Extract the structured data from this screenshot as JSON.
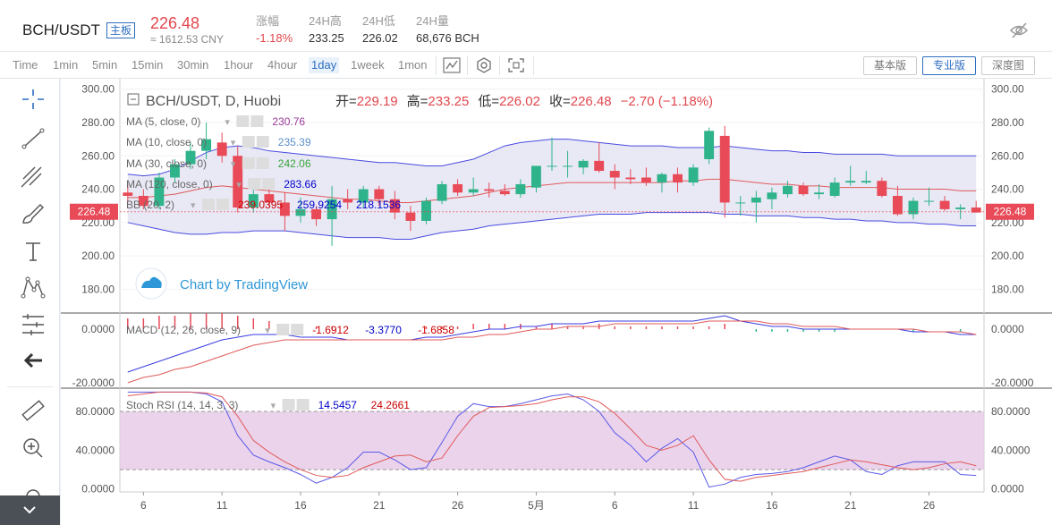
{
  "header": {
    "pair": "BCH/USDT",
    "badge": "主板",
    "price": "226.48",
    "cny": "≈ 1612.53 CNY",
    "stats": [
      {
        "label": "涨幅",
        "value": "-1.18%",
        "color": "red"
      },
      {
        "label": "24H高",
        "value": "233.25",
        "color": "normal"
      },
      {
        "label": "24H低",
        "value": "226.02",
        "color": "normal"
      },
      {
        "label": "24H量",
        "value": "68,676 BCH",
        "color": "normal"
      }
    ]
  },
  "toolbar": {
    "timeframes": [
      "Time",
      "1min",
      "5min",
      "15min",
      "30min",
      "1hour",
      "4hour",
      "1day",
      "1week",
      "1mon"
    ],
    "active_timeframe": "1day",
    "views": [
      "基本版",
      "专业版",
      "深度图"
    ],
    "active_view": "专业版"
  },
  "chart_data": {
    "type": "candlestick",
    "symbol": "BCH/USDT, D, Huobi",
    "ohlc_header": {
      "open_label": "开=",
      "open": "229.19",
      "high_label": "高=",
      "high": "233.25",
      "low_label": "低=",
      "low": "226.02",
      "close_label": "收=",
      "close": "226.48",
      "change": "−2.70 (−1.18%)"
    },
    "last_price_tag": "226.48",
    "watermark": "Chart by TradingView",
    "x_tick_labels": [
      "6",
      "11",
      "16",
      "21",
      "26",
      "5月",
      "6",
      "11",
      "16",
      "21",
      "26"
    ],
    "price_axis": {
      "ticks": [
        "300.00",
        "280.00",
        "260.00",
        "240.00",
        "220.00",
        "200.00",
        "180.00"
      ],
      "ylim": [
        170,
        302
      ]
    },
    "candles": [
      {
        "o": 238,
        "h": 243,
        "l": 232,
        "c": 236
      },
      {
        "o": 236,
        "h": 240,
        "l": 228,
        "c": 230
      },
      {
        "o": 230,
        "h": 250,
        "l": 228,
        "c": 247
      },
      {
        "o": 247,
        "h": 258,
        "l": 244,
        "c": 255
      },
      {
        "o": 255,
        "h": 268,
        "l": 252,
        "c": 263
      },
      {
        "o": 263,
        "h": 280,
        "l": 258,
        "c": 270
      },
      {
        "o": 268,
        "h": 274,
        "l": 256,
        "c": 260
      },
      {
        "o": 260,
        "h": 266,
        "l": 226,
        "c": 229
      },
      {
        "o": 229,
        "h": 240,
        "l": 226,
        "c": 237
      },
      {
        "o": 237,
        "h": 243,
        "l": 230,
        "c": 232
      },
      {
        "o": 232,
        "h": 238,
        "l": 215,
        "c": 224
      },
      {
        "o": 224,
        "h": 235,
        "l": 220,
        "c": 228
      },
      {
        "o": 228,
        "h": 230,
        "l": 218,
        "c": 222
      },
      {
        "o": 222,
        "h": 242,
        "l": 206,
        "c": 234
      },
      {
        "o": 234,
        "h": 240,
        "l": 228,
        "c": 232
      },
      {
        "o": 232,
        "h": 242,
        "l": 229,
        "c": 240
      },
      {
        "o": 240,
        "h": 242,
        "l": 230,
        "c": 234
      },
      {
        "o": 234,
        "h": 239,
        "l": 222,
        "c": 226
      },
      {
        "o": 226,
        "h": 230,
        "l": 215,
        "c": 221
      },
      {
        "o": 221,
        "h": 235,
        "l": 219,
        "c": 233
      },
      {
        "o": 233,
        "h": 245,
        "l": 231,
        "c": 243
      },
      {
        "o": 243,
        "h": 246,
        "l": 236,
        "c": 238
      },
      {
        "o": 238,
        "h": 247,
        "l": 236,
        "c": 240
      },
      {
        "o": 240,
        "h": 244,
        "l": 235,
        "c": 239
      },
      {
        "o": 239,
        "h": 243,
        "l": 236,
        "c": 237
      },
      {
        "o": 237,
        "h": 246,
        "l": 235,
        "c": 243
      },
      {
        "o": 241,
        "h": 254,
        "l": 238,
        "c": 254
      },
      {
        "o": 254,
        "h": 271,
        "l": 251,
        "c": 254
      },
      {
        "o": 254,
        "h": 263,
        "l": 247,
        "c": 254
      },
      {
        "o": 253,
        "h": 258,
        "l": 249,
        "c": 257
      },
      {
        "o": 257,
        "h": 268,
        "l": 250,
        "c": 251
      },
      {
        "o": 251,
        "h": 255,
        "l": 240,
        "c": 247
      },
      {
        "o": 247,
        "h": 252,
        "l": 243,
        "c": 246
      },
      {
        "o": 247,
        "h": 253,
        "l": 242,
        "c": 244
      },
      {
        "o": 244,
        "h": 250,
        "l": 238,
        "c": 249
      },
      {
        "o": 249,
        "h": 253,
        "l": 238,
        "c": 244
      },
      {
        "o": 244,
        "h": 255,
        "l": 242,
        "c": 253
      },
      {
        "o": 258,
        "h": 277,
        "l": 255,
        "c": 275
      },
      {
        "o": 272,
        "h": 278,
        "l": 223,
        "c": 232
      },
      {
        "o": 232,
        "h": 236,
        "l": 224,
        "c": 232
      },
      {
        "o": 232,
        "h": 239,
        "l": 220,
        "c": 235
      },
      {
        "o": 234,
        "h": 241,
        "l": 228,
        "c": 238
      },
      {
        "o": 237,
        "h": 245,
        "l": 235,
        "c": 242
      },
      {
        "o": 242,
        "h": 244,
        "l": 236,
        "c": 237
      },
      {
        "o": 237,
        "h": 243,
        "l": 234,
        "c": 238
      },
      {
        "o": 236,
        "h": 247,
        "l": 235,
        "c": 244
      },
      {
        "o": 244,
        "h": 254,
        "l": 242,
        "c": 245
      },
      {
        "o": 244,
        "h": 251,
        "l": 243,
        "c": 245
      },
      {
        "o": 245,
        "h": 247,
        "l": 235,
        "c": 236
      },
      {
        "o": 236,
        "h": 242,
        "l": 224,
        "c": 225
      },
      {
        "o": 225,
        "h": 235,
        "l": 222,
        "c": 233
      },
      {
        "o": 233,
        "h": 241,
        "l": 230,
        "c": 233
      },
      {
        "o": 233,
        "h": 236,
        "l": 227,
        "c": 228
      },
      {
        "o": 228,
        "h": 231,
        "l": 222,
        "c": 229
      },
      {
        "o": 229,
        "h": 233,
        "l": 226,
        "c": 226
      }
    ],
    "indicators": [
      {
        "label": "MA (5, close, 0)",
        "value": "230.76",
        "color": "#9a3a9a"
      },
      {
        "label": "MA (10, close, 0)",
        "value": "235.39",
        "color": "#5b8fc9"
      },
      {
        "label": "MA (30, close, 0)",
        "value": "242.06",
        "color": "#3aa33a"
      },
      {
        "label": "MA (120, close, 0)",
        "value": "283.66",
        "color": "#0000cc"
      },
      {
        "label": "BB (20, 2)",
        "values": [
          "239.0395",
          "259.9254",
          "218.1536"
        ],
        "colors": [
          "#cc0000",
          "#0000cc",
          "#0000cc"
        ]
      }
    ],
    "bollinger": {
      "upper": [
        249,
        248,
        249,
        252,
        257,
        262,
        265,
        266,
        265,
        263,
        262,
        261,
        260,
        259,
        258,
        257,
        256,
        256,
        255,
        254,
        254,
        256,
        258,
        262,
        266,
        268,
        269,
        270,
        270,
        269,
        268,
        267,
        266,
        266,
        266,
        265,
        265,
        265,
        266,
        265,
        264,
        263,
        263,
        262,
        262,
        261,
        261,
        261,
        261,
        260,
        260,
        260,
        260,
        260,
        260
      ],
      "middle": [
        235,
        235,
        236,
        237,
        239,
        241,
        242,
        241,
        240,
        239,
        238,
        237,
        236,
        235,
        234,
        234,
        233,
        232,
        232,
        233,
        234,
        235,
        236,
        238,
        240,
        241,
        242,
        243,
        244,
        244,
        244,
        244,
        244,
        244,
        244,
        245,
        245,
        246,
        246,
        245,
        244,
        243,
        243,
        242,
        242,
        241,
        241,
        241,
        241,
        240,
        240,
        240,
        240,
        239,
        239
      ],
      "lower": [
        220,
        218,
        216,
        214,
        213,
        213,
        214,
        214,
        215,
        215,
        215,
        214,
        213,
        212,
        211,
        211,
        211,
        210,
        210,
        212,
        214,
        215,
        216,
        218,
        219,
        220,
        221,
        222,
        223,
        224,
        225,
        225,
        225,
        226,
        226,
        226,
        226,
        226,
        225,
        225,
        224,
        224,
        224,
        223,
        223,
        222,
        222,
        221,
        221,
        220,
        220,
        219,
        219,
        218,
        218
      ]
    },
    "macd": {
      "label": "MACD (12, 26, close, 9)",
      "values": [
        "-1.6912",
        "-3.3770",
        "-1.6858"
      ],
      "colors": [
        "#cc0000",
        "#0000cc",
        "#cc0000"
      ],
      "axis_ticks": [
        "0.0000",
        "-20.0000"
      ],
      "ylim": [
        -22,
        6
      ],
      "macd_line": [
        -16,
        -14,
        -12,
        -10,
        -8,
        -6,
        -4,
        -3,
        -2,
        -2,
        -2,
        -3,
        -3,
        -3,
        -4,
        -4,
        -4,
        -4,
        -4,
        -3,
        -3,
        -2,
        -1,
        0,
        0,
        1,
        1,
        2,
        2,
        2,
        3,
        3,
        3,
        3,
        3,
        3,
        3,
        4,
        5,
        3,
        2,
        1,
        1,
        0,
        0,
        0,
        0,
        0,
        0,
        0,
        -1,
        -1,
        -1,
        -2,
        -2
      ],
      "signal_line": [
        -20,
        -18,
        -17,
        -15,
        -14,
        -12,
        -10,
        -8,
        -6,
        -5,
        -4,
        -4,
        -4,
        -4,
        -4,
        -4,
        -4,
        -4,
        -4,
        -4,
        -4,
        -3,
        -3,
        -2,
        -2,
        -1,
        0,
        0,
        1,
        1,
        1,
        2,
        2,
        2,
        2,
        2,
        2,
        3,
        3,
        3,
        3,
        2,
        2,
        1,
        1,
        1,
        0,
        0,
        0,
        0,
        0,
        -1,
        -1,
        -1,
        -2
      ]
    },
    "stoch_rsi": {
      "label": "Stoch RSI (14, 14, 3, 3)",
      "values": [
        "14.5457",
        "24.2661"
      ],
      "colors": [
        "#0000cc",
        "#cc0000"
      ],
      "axis_ticks": [
        "80.0000",
        "40.0000",
        "0.0000"
      ],
      "ylim": [
        -3,
        104
      ],
      "bands": [
        80,
        20
      ],
      "k_line": [
        100,
        100,
        100,
        100,
        100,
        98,
        90,
        55,
        35,
        28,
        22,
        15,
        6,
        12,
        22,
        38,
        38,
        30,
        20,
        22,
        48,
        75,
        88,
        85,
        85,
        88,
        92,
        96,
        98,
        92,
        80,
        58,
        45,
        28,
        42,
        52,
        38,
        2,
        5,
        12,
        15,
        16,
        18,
        22,
        28,
        34,
        30,
        18,
        15,
        24,
        28,
        28,
        28,
        15,
        14
      ],
      "d_line": [
        96,
        98,
        100,
        100,
        100,
        99,
        95,
        75,
        50,
        38,
        28,
        20,
        14,
        12,
        14,
        22,
        28,
        34,
        35,
        28,
        32,
        55,
        75,
        84,
        85,
        86,
        88,
        92,
        95,
        95,
        90,
        78,
        62,
        45,
        40,
        45,
        55,
        30,
        10,
        8,
        12,
        14,
        16,
        18,
        22,
        26,
        30,
        28,
        25,
        22,
        20,
        22,
        26,
        28,
        24
      ]
    }
  }
}
